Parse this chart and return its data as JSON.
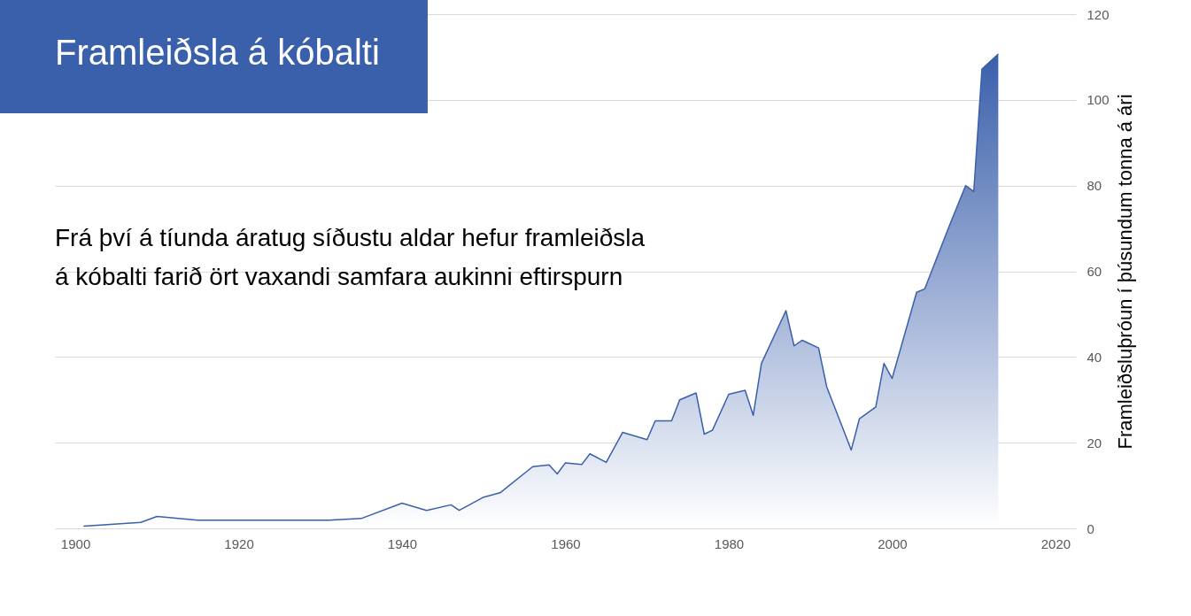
{
  "chart_data": {
    "type": "area",
    "title": "Framleiðsla á kóbalti",
    "subtitle": "Frá því á tíunda áratug síðustu aldar hefur framleiðsla\ná kóbalti farið ört vaxandi samfara aukinni eftirspurn",
    "ylabel": "Framleiðsluþróun í þúsundum tonna á ári",
    "x": [
      1901,
      1908,
      1910,
      1915,
      1931,
      1935,
      1940,
      1943,
      1946,
      1947,
      1950,
      1952,
      1956,
      1958,
      1959,
      1960,
      1962,
      1963,
      1965,
      1967,
      1970,
      1971,
      1973,
      1974,
      1976,
      1977,
      1978,
      1980,
      1982,
      1983,
      1984,
      1987,
      1988,
      1989,
      1991,
      1992,
      1995,
      1996,
      1998,
      1999,
      2000,
      2003,
      2004,
      2007,
      2009,
      2010,
      2011,
      2013
    ],
    "series": [
      {
        "color": "#3a5fab",
        "values": [
          0.5,
          1.4,
          2.8,
          1.9,
          1.9,
          2.3,
          5.9,
          4.2,
          5.5,
          4.2,
          7.3,
          8.3,
          14.4,
          14.8,
          12.7,
          15.3,
          14.9,
          17.4,
          15.4,
          22.4,
          20.7,
          25.1,
          25.1,
          30.0,
          31.6,
          22.0,
          22.9,
          31.3,
          32.2,
          26.4,
          38.5,
          50.8,
          42.6,
          43.9,
          42.1,
          33.0,
          18.3,
          25.6,
          28.3,
          38.5,
          35.0,
          55.1,
          55.9,
          70.6,
          80.0,
          78.6,
          107.2,
          110.7
        ]
      }
    ],
    "xlim": [
      1897.5,
      2022.5
    ],
    "ylim": [
      0,
      120
    ],
    "xticks": [
      1900,
      1920,
      1940,
      1960,
      1980,
      2000,
      2020
    ],
    "yticks": [
      0,
      20,
      40,
      60,
      80,
      100,
      120
    ],
    "grid": "y"
  }
}
